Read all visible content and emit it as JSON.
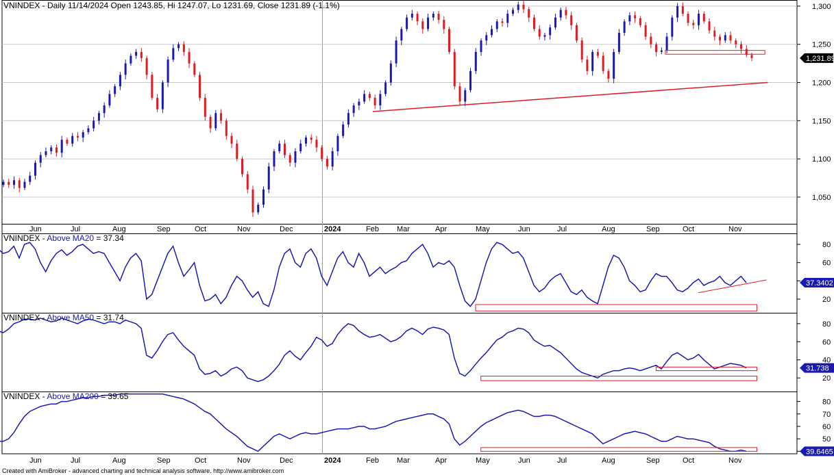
{
  "chart_data": {
    "type": "line",
    "months": [
      "Jun",
      "Jul",
      "Aug",
      "Sep",
      "Oct",
      "Nov",
      "Dec",
      "2024",
      "Feb",
      "Mar",
      "Apr",
      "May",
      "Jun",
      "Jul",
      "Aug",
      "Sep",
      "Oct",
      "Nov"
    ],
    "footer": "Created with AmiBroker - advanced charting and technical analysis software. http://www.amibroker.com",
    "colors": {
      "up": "#1a1ab0",
      "down": "#e01b24",
      "line": "#1a1ab0",
      "annotation": "#e01b24",
      "grid": "#c8c8c8"
    },
    "price": {
      "title": "VNINDEX - Daily 11/14/2024 Open 1243.85, Hi 1247.07, Lo 1231.69, Close 1231.89 (-1.1%)",
      "y_ticks": [
        "1,300",
        "1,250",
        "1,200",
        "1,150",
        "1,100",
        "1,050"
      ],
      "last_value": "1,231.89",
      "ylim": [
        1015,
        1308
      ],
      "closes": [
        1070,
        1066,
        1072,
        1062,
        1070,
        1078,
        1095,
        1105,
        1110,
        1115,
        1108,
        1125,
        1120,
        1130,
        1128,
        1135,
        1140,
        1150,
        1160,
        1170,
        1185,
        1195,
        1210,
        1225,
        1235,
        1240,
        1232,
        1210,
        1180,
        1165,
        1200,
        1230,
        1245,
        1250,
        1240,
        1225,
        1210,
        1180,
        1155,
        1140,
        1160,
        1150,
        1130,
        1120,
        1100,
        1080,
        1060,
        1030,
        1040,
        1060,
        1090,
        1110,
        1120,
        1105,
        1095,
        1110,
        1120,
        1128,
        1125,
        1115,
        1100,
        1090,
        1110,
        1130,
        1145,
        1160,
        1170,
        1175,
        1185,
        1180,
        1170,
        1185,
        1200,
        1225,
        1255,
        1270,
        1285,
        1290,
        1280,
        1270,
        1285,
        1290,
        1282,
        1270,
        1240,
        1195,
        1175,
        1190,
        1215,
        1240,
        1255,
        1262,
        1270,
        1280,
        1278,
        1290,
        1295,
        1302,
        1296,
        1285,
        1270,
        1260,
        1262,
        1272,
        1285,
        1295,
        1288,
        1275,
        1255,
        1230,
        1215,
        1240,
        1235,
        1215,
        1205,
        1240,
        1265,
        1280,
        1288,
        1284,
        1275,
        1260,
        1250,
        1240,
        1242,
        1260,
        1285,
        1300,
        1290,
        1278,
        1275,
        1290,
        1280,
        1268,
        1260,
        1255,
        1262,
        1255,
        1250,
        1244,
        1236,
        1232
      ],
      "ohlc_range": {
        "x_start_date": "2023-05-25"
      },
      "support_line": [
        {
          "date": "2024-01-31",
          "price": 1162
        },
        {
          "date": "2024-11-22",
          "price": 1200
        }
      ],
      "boxes": [
        {
          "date_from": "2024-09-10",
          "date_to": "2024-11-20",
          "price_from": 1237,
          "price_to": 1242
        }
      ]
    },
    "panes": [
      {
        "name": "Above MA20",
        "title_prefix": "VNINDEX - ",
        "title_ind": "Above MA20",
        "title_value": " = 37.34",
        "y_ticks": [
          "80",
          "60",
          "40",
          "20"
        ],
        "tick_values": [
          80,
          60,
          40,
          20
        ],
        "ylim": [
          5,
          92
        ],
        "last_value": "37.3402",
        "values": [
          75,
          70,
          72,
          78,
          65,
          80,
          82,
          75,
          60,
          50,
          62,
          70,
          74,
          68,
          72,
          78,
          80,
          75,
          70,
          72,
          70,
          60,
          50,
          40,
          55,
          65,
          70,
          62,
          20,
          25,
          40,
          55,
          70,
          78,
          60,
          45,
          52,
          60,
          35,
          18,
          20,
          25,
          15,
          22,
          35,
          45,
          40,
          30,
          22,
          28,
          15,
          12,
          30,
          55,
          70,
          75,
          60,
          55,
          70,
          75,
          65,
          45,
          35,
          50,
          65,
          72,
          60,
          55,
          70,
          60,
          45,
          50,
          55,
          48,
          52,
          55,
          60,
          62,
          70,
          75,
          80,
          70,
          55,
          60,
          58,
          62,
          55,
          35,
          18,
          12,
          20,
          40,
          60,
          75,
          82,
          80,
          75,
          70,
          72,
          65,
          50,
          35,
          28,
          32,
          40,
          45,
          48,
          38,
          28,
          25,
          30,
          22,
          18,
          15,
          35,
          55,
          68,
          65,
          55,
          40,
          35,
          28,
          30,
          40,
          48,
          45,
          45,
          38,
          30,
          28,
          32,
          38,
          42,
          35,
          38,
          40,
          45,
          38,
          35,
          40,
          45,
          38
        ],
        "trend_line": [
          {
            "i": 132,
            "v": 27
          },
          {
            "i": 143,
            "v": 41
          }
        ],
        "boxes": [
          {
            "i_from": 90,
            "i_to": 143,
            "v_from": 7,
            "v_to": 14
          }
        ]
      },
      {
        "name": "Above MA50",
        "title_prefix": "VNINDEX - ",
        "title_ind": "Above MA50",
        "title_value": " = 31.74",
        "y_ticks": [
          "80",
          "60",
          "40",
          "20"
        ],
        "tick_values": [
          80,
          60,
          40,
          20
        ],
        "ylim": [
          5,
          92
        ],
        "last_value": "31.738",
        "values": [
          72,
          70,
          74,
          80,
          82,
          85,
          85,
          84,
          86,
          84,
          82,
          83,
          86,
          84,
          82,
          80,
          83,
          85,
          84,
          82,
          80,
          82,
          82,
          80,
          84,
          82,
          80,
          75,
          45,
          42,
          50,
          60,
          68,
          70,
          62,
          55,
          50,
          45,
          30,
          24,
          25,
          28,
          22,
          25,
          30,
          32,
          28,
          20,
          18,
          16,
          18,
          22,
          28,
          35,
          45,
          50,
          44,
          40,
          48,
          55,
          65,
          62,
          55,
          58,
          68,
          75,
          80,
          78,
          72,
          68,
          65,
          66,
          68,
          64,
          60,
          62,
          66,
          72,
          75,
          72,
          68,
          74,
          76,
          75,
          73,
          68,
          42,
          25,
          22,
          28,
          35,
          42,
          48,
          55,
          62,
          65,
          70,
          72,
          75,
          74,
          70,
          62,
          58,
          55,
          56,
          52,
          48,
          42,
          36,
          30,
          26,
          24,
          22,
          20,
          24,
          26,
          28,
          28,
          30,
          31,
          30,
          28,
          30,
          32,
          34,
          30,
          38,
          45,
          48,
          44,
          40,
          42,
          46,
          40,
          35,
          30,
          32,
          34,
          36,
          35,
          34,
          31
        ],
        "boxes": [
          {
            "i_from": 91,
            "i_to": 143,
            "v_from": 17,
            "v_to": 22
          },
          {
            "i_from": 124,
            "i_to": 143,
            "v_from": 28,
            "v_to": 32
          }
        ]
      },
      {
        "name": "Above MA200",
        "title_prefix": "VNINDEX - ",
        "title_ind": "Above MA200",
        "title_value": " = 39.65",
        "y_ticks": [
          "80",
          "70",
          "60",
          "50",
          "40"
        ],
        "tick_values": [
          80,
          70,
          60,
          50,
          40
        ],
        "ylim": [
          38,
          88
        ],
        "last_value": "39.6465",
        "values": [
          48,
          48,
          50,
          55,
          62,
          68,
          72,
          74,
          76,
          77,
          78,
          78,
          80,
          80,
          81,
          82,
          83,
          83,
          84,
          84,
          85,
          85,
          85,
          86,
          86,
          86,
          86,
          86,
          86,
          86,
          86,
          86,
          85,
          84,
          83,
          82,
          80,
          78,
          75,
          72,
          70,
          66,
          62,
          58,
          55,
          52,
          48,
          44,
          42,
          40,
          44,
          48,
          52,
          54,
          52,
          50,
          52,
          54,
          55,
          54,
          54,
          55,
          56,
          57,
          58,
          58,
          58,
          59,
          60,
          60,
          58,
          58,
          59,
          60,
          62,
          64,
          65,
          66,
          67,
          68,
          69,
          70,
          70,
          68,
          66,
          62,
          50,
          45,
          48,
          52,
          56,
          60,
          63,
          65,
          67,
          69,
          71,
          72,
          73,
          72,
          70,
          68,
          68,
          69,
          69,
          68,
          66,
          64,
          62,
          60,
          58,
          56,
          54,
          50,
          46,
          48,
          50,
          52,
          54,
          55,
          56,
          55,
          54,
          52,
          50,
          48,
          48,
          50,
          52,
          51,
          50,
          50,
          49,
          48,
          47,
          44,
          42,
          41,
          40,
          40,
          41,
          40
        ],
        "boxes": [
          {
            "i_from": 91,
            "i_to": 143,
            "v_from": 40,
            "v_to": 43
          }
        ]
      }
    ]
  }
}
